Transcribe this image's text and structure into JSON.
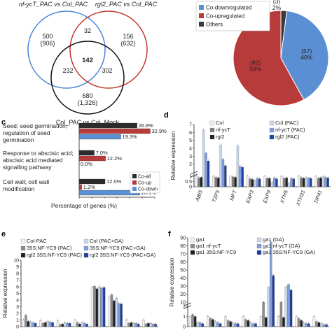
{
  "venn": {
    "label_a": "nf-ycT_PAC vs Col_PAC",
    "label_b": "rgl2_PAC vs Col_PAC",
    "label_c": "Col_PAC vs Col_Mock",
    "a_only": "500\n(906)",
    "b_only": "156\n(632)",
    "c_only": "680\n(1,326)",
    "ab": "32",
    "ac": "232",
    "bc": "302",
    "abc": "142",
    "colors": {
      "a": "#4a86d6",
      "b": "#c0392b",
      "c": "#111111"
    }
  },
  "chart_data": [
    {
      "type": "pie",
      "slices": [
        {
          "name": "Co-downregulated",
          "count": 57,
          "value": 40,
          "label": "(57)\n40%",
          "color": "#5b8fd4"
        },
        {
          "name": "Co-upregulated",
          "count": 82,
          "value": 58,
          "label": "(82)\n58%",
          "color": "#b83b3b"
        },
        {
          "name": "Others",
          "count": 3,
          "value": 2,
          "label": "(3)\n2%",
          "color": "#3a3a3a"
        }
      ]
    },
    {
      "type": "bar",
      "orientation": "horizontal",
      "panel": "c",
      "categories": [
        "Seed; seed germination; regulation of seed germination",
        "Response to abscisic acid; abscisic acid mediated signalling pathway",
        "Cell wall; cell wall modification"
      ],
      "category_lines": [
        [
          "Seed; seed germination;",
          "regulation of seed",
          "germination"
        ],
        [
          "Response to abscisic acid;",
          "abscisic acid mediated",
          "signalling pathway"
        ],
        [
          "Cell wall; cell wall",
          "modification"
        ]
      ],
      "series": [
        {
          "name": "Co-all",
          "values": [
            26.8,
            7.0,
            12.0
          ],
          "labels": [
            "26.8%",
            "7.0%",
            "12.0%"
          ],
          "color": "#2b2b2b"
        },
        {
          "name": "Co-up",
          "values": [
            32.9,
            12.2,
            1.2
          ],
          "labels": [
            "32.9%",
            "12.2%",
            "1.2%"
          ],
          "color": "#b83b3b"
        },
        {
          "name": "Co-down",
          "values": [
            19.3,
            0.0,
            28.1
          ],
          "labels": [
            "19.3%",
            "0.0%",
            "28.1%"
          ],
          "color": "#5b8fd4"
        }
      ],
      "xlabel": "Percentage of genes (%)",
      "xlim": [
        0,
        35
      ]
    },
    {
      "type": "bar",
      "panel": "d",
      "categories": [
        "ABI5",
        "TZF5",
        "MFT",
        "EXP3",
        "EXP9",
        "XTH5",
        "XTH31",
        "TIP41"
      ],
      "ylabel": "Relative expression",
      "yticks": [
        "0",
        "0.5",
        "1",
        "2",
        "3",
        "4",
        "5",
        "6",
        "7"
      ],
      "series": [
        {
          "name": "Col",
          "values": [
            1,
            1,
            1,
            1,
            1,
            1,
            1,
            1
          ],
          "color": "#f2f2f2"
        },
        {
          "name": "nf-ycT",
          "values": [
            0.85,
            0.9,
            0.95,
            0.75,
            0.8,
            0.8,
            0.85,
            0.8
          ],
          "color": "#7f7f7f"
        },
        {
          "name": "rgl2",
          "values": [
            0.9,
            0.85,
            0.9,
            0.7,
            0.8,
            0.85,
            0.8,
            0.85
          ],
          "color": "#1f1f1f"
        },
        {
          "name": "Col (PAC)",
          "values": [
            6.3,
            4.4,
            4.3,
            0.55,
            0.45,
            0.35,
            0.9,
            0.95
          ],
          "color": "#c8d8f0"
        },
        {
          "name": "nf-ycT (PAC)",
          "values": [
            3.4,
            2.6,
            1.7,
            0.8,
            0.85,
            0.8,
            0.8,
            0.9
          ],
          "color": "#7f9fe0"
        },
        {
          "name": "rgl2 (PAC)",
          "values": [
            2.4,
            1.8,
            1.6,
            0.75,
            0.75,
            0.75,
            0.8,
            0.85
          ],
          "color": "#1f3fa0"
        }
      ]
    },
    {
      "type": "bar",
      "panel": "e",
      "ylabel": "Relative expression",
      "yticks": [
        "0",
        "1",
        "2",
        "3",
        "4",
        "5",
        "6",
        "7",
        "8",
        "9",
        "10"
      ],
      "ylim": [
        0,
        10
      ],
      "categories": [
        "",
        "",
        "",
        "",
        "",
        "",
        "",
        ""
      ],
      "series": [
        {
          "name": "Col-PAC",
          "values": [
            1.0,
            0.9,
            0.9,
            1.0,
            5.9,
            4.5,
            1.0,
            1.0
          ],
          "color": "#f2f2f2"
        },
        {
          "name": "35S:NF-YC9 (PAC)",
          "values": [
            1.7,
            0.5,
            0.3,
            0.6,
            6.1,
            4.8,
            0.5,
            0.4
          ],
          "color": "#8c8c8c"
        },
        {
          "name": "rgl2 35S:NF-YC9 (PAC)",
          "values": [
            0.8,
            0.6,
            0.4,
            0.4,
            5.7,
            3.9,
            0.6,
            0.5
          ],
          "color": "#1f1f1f"
        },
        {
          "name": "Col (PAC+GA)",
          "values": [
            0.7,
            0.8,
            0.6,
            0.6,
            6.0,
            4.3,
            0.5,
            0.5
          ],
          "color": "#c8d8f0"
        },
        {
          "name": "35S:NF-YC9 (PAC+GA)",
          "values": [
            0.6,
            0.7,
            0.5,
            0.5,
            5.8,
            3.5,
            0.5,
            0.4
          ],
          "color": "#7f9fe0"
        },
        {
          "name": "rgl2 35S:NF-YC9 (PAC+GA)",
          "values": [
            0.5,
            0.6,
            0.5,
            0.4,
            5.9,
            3.4,
            0.4,
            0.4
          ],
          "color": "#1f3fa0"
        }
      ]
    },
    {
      "type": "bar",
      "panel": "f",
      "ylabel": "Relative expression",
      "yticks": [
        "0",
        "1",
        "2",
        "10",
        "20",
        "30",
        "40",
        "50",
        "60",
        "70",
        "80",
        "90"
      ],
      "categories": [
        "",
        "",
        "",
        "",
        "",
        "",
        "",
        ""
      ],
      "series": [
        {
          "name": "ga1",
          "values": [
            1,
            1,
            1,
            1,
            1,
            1,
            1,
            1
          ],
          "color": "#f2f2f2"
        },
        {
          "name": "ga1 nf-ycT",
          "values": [
            1.2,
            0.8,
            0.6,
            0.7,
            10,
            10,
            0.8,
            0.5
          ],
          "color": "#8c8c8c"
        },
        {
          "name": "ga1 35S:NF-YC9",
          "values": [
            1.0,
            0.7,
            0.5,
            0.6,
            0.9,
            0.9,
            0.6,
            0.4
          ],
          "color": "#1f1f1f"
        },
        {
          "name": "ga1 (GA)",
          "values": [
            0.4,
            0.5,
            0.4,
            0.4,
            28,
            29,
            0.4,
            0.3
          ],
          "color": "#c8d8f0"
        },
        {
          "name": "ga1 nf-ycT (GA)",
          "values": [
            0.4,
            0.4,
            0.3,
            0.3,
            85,
            32,
            0.3,
            0.2
          ],
          "color": "#7f9fe0"
        },
        {
          "name": "ga1 35S:NF-YC9 (GA)",
          "values": [
            0.3,
            0.3,
            0.3,
            0.3,
            43,
            25,
            0.3,
            0.2
          ],
          "color": "#1f3fa0"
        }
      ]
    }
  ],
  "panels": {
    "c": "c",
    "d": "d",
    "e": "e",
    "f": "f"
  }
}
